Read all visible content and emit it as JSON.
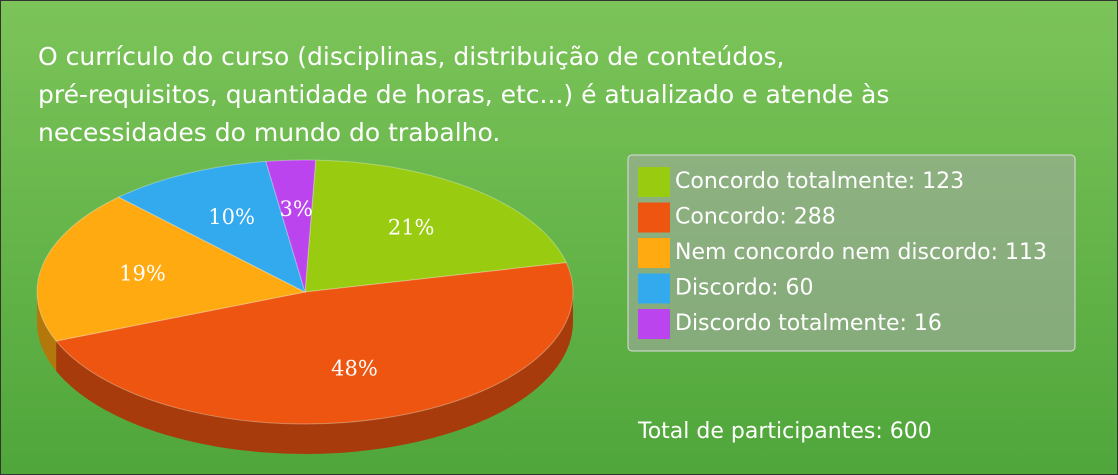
{
  "chart_data": {
    "type": "pie",
    "title": [
      "O currículo do curso (disciplinas, distribuição de conteúdos,",
      "pré-requisitos, quantidade de horas, etc...) é atualizado e atende às",
      "necessidades do mundo do trabalho."
    ],
    "categories": [
      "Concordo totalmente: 123",
      "Concordo: 288",
      "Nem concordo nem discordo: 113",
      "Discordo: 60",
      "Discordo totalmente: 16"
    ],
    "values": [
      21,
      48,
      19,
      10,
      3
    ],
    "value_labels": [
      "21%",
      "48%",
      "19%",
      "10%",
      "3%"
    ],
    "colors": [
      "#99cc11",
      "#ee5511",
      "#ffaa11",
      "#33aaee",
      "#bb44ee"
    ],
    "annotation": "Total de participantes: 600"
  }
}
